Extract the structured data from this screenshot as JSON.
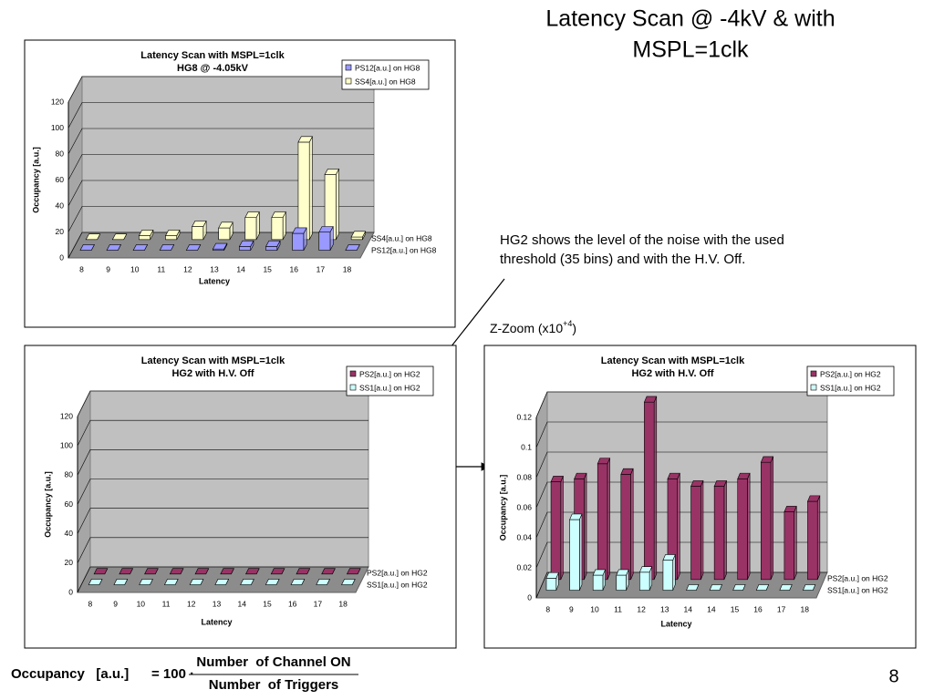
{
  "slide": {
    "title_lines": [
      "Latency Scan @ -4kV & with",
      "MSPL=1clk"
    ],
    "note_lines": [
      "HG2 shows the level of the noise with the used",
      "threshold (35 bins) and with the H.V. Off."
    ],
    "zoom": [
      "Z-Zoom (x10",
      "+4",
      ")"
    ],
    "formula": {
      "lhs": "Occupancy   [a.u.]",
      "mult": "= 100 ·",
      "numerator": "Number  of Channel ON",
      "denominator": "Number  of Triggers"
    },
    "page": "8"
  },
  "chart_data": [
    {
      "type": "bar3d",
      "title": "Latency Scan with MSPL=1clk",
      "subtitle": "HG8 @ -4.05kV",
      "y_label": "Occupancy [a.u.]",
      "x_label": "Latency",
      "categories": [
        "8",
        "9",
        "10",
        "11",
        "12",
        "13",
        "14",
        "15",
        "16",
        "17",
        "18"
      ],
      "series": [
        {
          "name": "PS12[a.u.] on HG8",
          "color": "#9999ff",
          "values": [
            0,
            0,
            0,
            0,
            0,
            1,
            3,
            3,
            13,
            14,
            0
          ]
        },
        {
          "name": "SS4[a.u.] on HG8",
          "color": "#ffffcc",
          "values": [
            0,
            0,
            3,
            3,
            10,
            9,
            17,
            17,
            75,
            50,
            2
          ]
        }
      ],
      "ylim": [
        0,
        120
      ],
      "yticks": [
        0,
        20,
        40,
        60,
        80,
        100,
        120
      ],
      "grid": true
    },
    {
      "type": "bar3d",
      "title": "Latency Scan with MSPL=1clk",
      "subtitle": "HG2 with H.V. Off",
      "y_label": "Occupancy [a.u.]",
      "x_label": "Latency",
      "categories": [
        "8",
        "9",
        "10",
        "11",
        "12",
        "13",
        "14",
        "15",
        "16",
        "17",
        "18"
      ],
      "series": [
        {
          "name": "SS1[a.u.] on HG2",
          "color": "#ccffff",
          "values": [
            0,
            0,
            0,
            0,
            0,
            0,
            0,
            0,
            0,
            0,
            0
          ]
        },
        {
          "name": "PS2[a.u.] on HG2",
          "color": "#993366",
          "values": [
            0,
            0,
            0,
            0,
            0,
            0,
            0,
            0,
            0,
            0,
            0
          ]
        }
      ],
      "ylim": [
        0,
        120
      ],
      "yticks": [
        0,
        20,
        40,
        60,
        80,
        100,
        120
      ],
      "grid": true
    },
    {
      "type": "bar3d",
      "title": "Latency Scan with MSPL=1clk",
      "subtitle": "HG2 with H.V. Off",
      "y_label": "Occupancy [a.u.]",
      "x_label": "Latency",
      "categories": [
        "8",
        "9",
        "10",
        "11",
        "12",
        "13",
        "14",
        "14",
        "15",
        "16",
        "17",
        "18"
      ],
      "series": [
        {
          "name": "SS1[a.u.] on HG2",
          "color": "#ccffff",
          "values": [
            0.008,
            0.047,
            0.01,
            0.01,
            0.012,
            0.02,
            0,
            0,
            0,
            0,
            0,
            0
          ]
        },
        {
          "name": "PS2[a.u.] on HG2",
          "color": "#993366",
          "values": [
            0.065,
            0.067,
            0.077,
            0.07,
            0.118,
            0.067,
            0.062,
            0.062,
            0.067,
            0.078,
            0.045,
            0.052
          ]
        }
      ],
      "ylim": [
        0,
        0.12
      ],
      "yticks": [
        0,
        0.02,
        0.04,
        0.06,
        0.08,
        0.1,
        0.12
      ],
      "grid": true
    }
  ]
}
